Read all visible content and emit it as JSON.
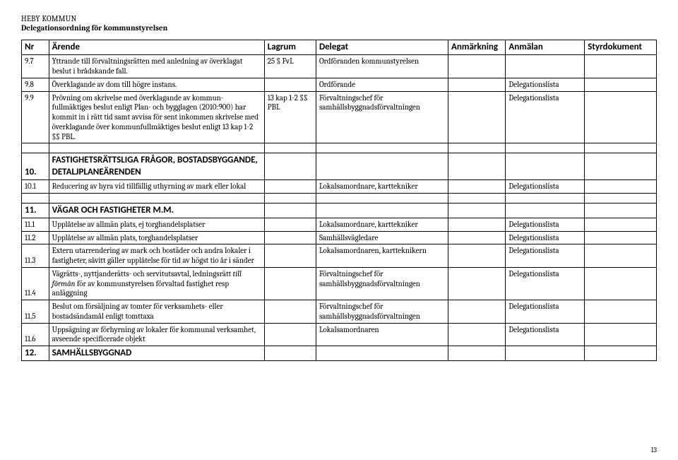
{
  "header": {
    "org": "HEBY KOMMUN",
    "title": "Delegationsordning för kommunstyrelsen"
  },
  "columns": {
    "nr": "Nr",
    "arende": "Ärende",
    "lagrum": "Lagrum",
    "delegat": "Delegat",
    "anmarkning": "Anmärkning",
    "anmalan": "Anmälan",
    "styrdokument": "Styrdokument"
  },
  "rows": {
    "r97": {
      "nr": "9.7",
      "arende": "Yttrande till förvaltningsrätten med anledning av överklagat beslut i brådskande fall.",
      "lagrum": "25 § FvL",
      "delegat": "Ordföranden kommunstyrelsen"
    },
    "r98": {
      "nr": "9.8",
      "arende": "Överklagande av dom till högre instans.",
      "delegat": "Ordförande",
      "anmalan": "Delegationslista"
    },
    "r99": {
      "nr": "9.9",
      "arende": "Prövning om skrivelse med överklagande av kommun-fullmäktiges beslut enligt Plan- och bygglagen (2010:900) har kommit in i rätt tid samt avvisa för sent inkommen skrivelse med överklagande över kommunfullmäktiges beslut enligt 13 kap 1-2 §§ PBL.",
      "lagrum": "13 kap 1-2 §§ PBL",
      "delegat": "Förvaltningschef för samhällsbyggnadsförvaltningen",
      "anmalan": "Delegationslista"
    },
    "s10": {
      "nr": "10.",
      "title": "FASTIGHETSRÄTTSLIGA FRÅGOR, BOSTADSBYGGANDE, DETALJPLANEÄRENDEN"
    },
    "r101": {
      "nr": "10.1",
      "arende": "Reducering av hyra vid tillfällig uthyrning av mark eller lokal",
      "delegat": "Lokalsamordnare, karttekniker",
      "anmalan": "Delegationslista"
    },
    "s11": {
      "nr": "11.",
      "title": "VÄGAR OCH FASTIGHETER M.M."
    },
    "r111": {
      "nr": "11.1",
      "arende": "Upplåtelse av allmän plats, ej torghandelsplatser",
      "delegat": "Lokalsamordnare, karttekniker",
      "anmalan": "Delegationslista"
    },
    "r112": {
      "nr": "11.2",
      "arende": "Upplåtelse av allmän plats, torghandelsplatser",
      "delegat": "Samhällsvägledare",
      "anmalan": "Delegationslista"
    },
    "r113": {
      "nr": "11.3",
      "arende": "Extern utarrendering av mark och bostäder och andra lokaler i fastigheter, såvitt gäller upplåtelse för tid av högst tio år i sänder",
      "delegat": "Lokalsamordnaren, kartteknikern",
      "anmalan": "Delegationslista"
    },
    "r114": {
      "nr": "11.4",
      "arende_pre": "Vägrätts-, nyttjanderätts- och servitutsavtal, ledningsrätt ",
      "arende_em": "till förmån",
      "arende_post": " för av kommunstyrelsen förvaltad fastighet resp anläggning",
      "delegat": "Förvaltningschef för samhällsbyggnadsförvaltningen",
      "anmalan": "Delegationslista"
    },
    "r115": {
      "nr": "11.5",
      "arende": "Beslut om försäljning av tomter för verksamhets- eller bostadsändamål enligt tomttaxa",
      "delegat": "Förvaltningschef för samhällsbyggnadsförvaltningen",
      "anmalan": "Delegationslista"
    },
    "r116": {
      "nr": "11.6",
      "arende": "Uppsägning av förhyrning av lokaler för kommunal verksamhet, avseende specificerade objekt",
      "delegat": "Lokalsamordnaren",
      "anmalan": "Delegationslista"
    },
    "s12": {
      "nr": "12.",
      "title": "SAMHÄLLSBYGGNAD"
    }
  },
  "page_number": "13"
}
